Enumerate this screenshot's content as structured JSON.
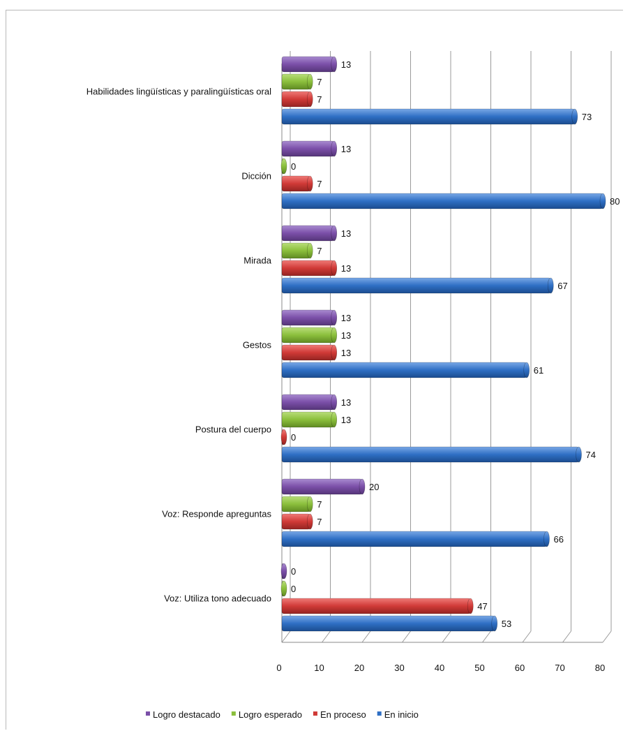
{
  "chart_data": {
    "type": "bar",
    "orientation": "horizontal",
    "categories": [
      "Habilidades lingüísticas y paralingüísticas oral",
      "Dicción",
      "Mirada",
      "Gestos",
      "Postura del cuerpo",
      "Voz: Responde apreguntas",
      "Voz: Utiliza tono adecuado"
    ],
    "series": [
      {
        "name": "Logro destacado",
        "color": "#7b4fa8",
        "values": [
          13,
          13,
          13,
          13,
          13,
          20,
          0
        ]
      },
      {
        "name": "Logro esperado",
        "color": "#8bbf3c",
        "values": [
          7,
          0,
          7,
          13,
          13,
          7,
          0
        ]
      },
      {
        "name": "En proceso",
        "color": "#d03a37",
        "values": [
          7,
          7,
          13,
          13,
          0,
          7,
          47
        ]
      },
      {
        "name": "En inicio",
        "color": "#2f6fc4",
        "values": [
          73,
          80,
          67,
          61,
          74,
          66,
          53
        ]
      }
    ],
    "xlim": [
      0,
      80
    ],
    "xticks": [
      0,
      10,
      20,
      30,
      40,
      50,
      60,
      70,
      80
    ],
    "grid": true,
    "legend_position": "bottom",
    "title": "",
    "xlabel": "",
    "ylabel": ""
  }
}
